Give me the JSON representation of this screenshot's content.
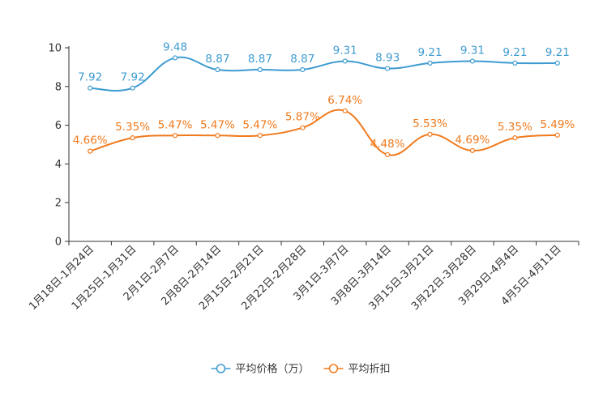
{
  "chart_data": {
    "type": "line",
    "title": "",
    "xlabel": "",
    "ylabel": "",
    "ylim": [
      0,
      10
    ],
    "yticks": [
      0,
      2,
      4,
      6,
      8,
      10
    ],
    "grid": false,
    "legend_position": "bottom",
    "categories": [
      "1月18日-1月24日",
      "1月25日-1月31日",
      "2月1日-2月7日",
      "2月8日-2月14日",
      "2月15日-2月21日",
      "2月22日-2月28日",
      "3月1日-3月7日",
      "3月8日-3月14日",
      "3月15日-3月21日",
      "3月22日-3月28日",
      "3月29日-4月4日",
      "4月5日-4月11日"
    ],
    "series": [
      {
        "name": "平均价格（万）",
        "color": "#3d9bd0",
        "label_format": "plain",
        "values": [
          7.92,
          7.92,
          9.48,
          8.87,
          8.87,
          8.87,
          9.31,
          8.93,
          9.21,
          9.31,
          9.21,
          9.21
        ]
      },
      {
        "name": "平均折扣",
        "color": "#f07a1d",
        "label_format": "percent",
        "values": [
          4.66,
          5.35,
          5.47,
          5.47,
          5.47,
          5.87,
          6.74,
          4.48,
          5.53,
          4.69,
          5.35,
          5.49
        ]
      }
    ]
  },
  "colors": {
    "axis": "#333333",
    "tick_text": "#333333",
    "legend_text": "#333333"
  }
}
